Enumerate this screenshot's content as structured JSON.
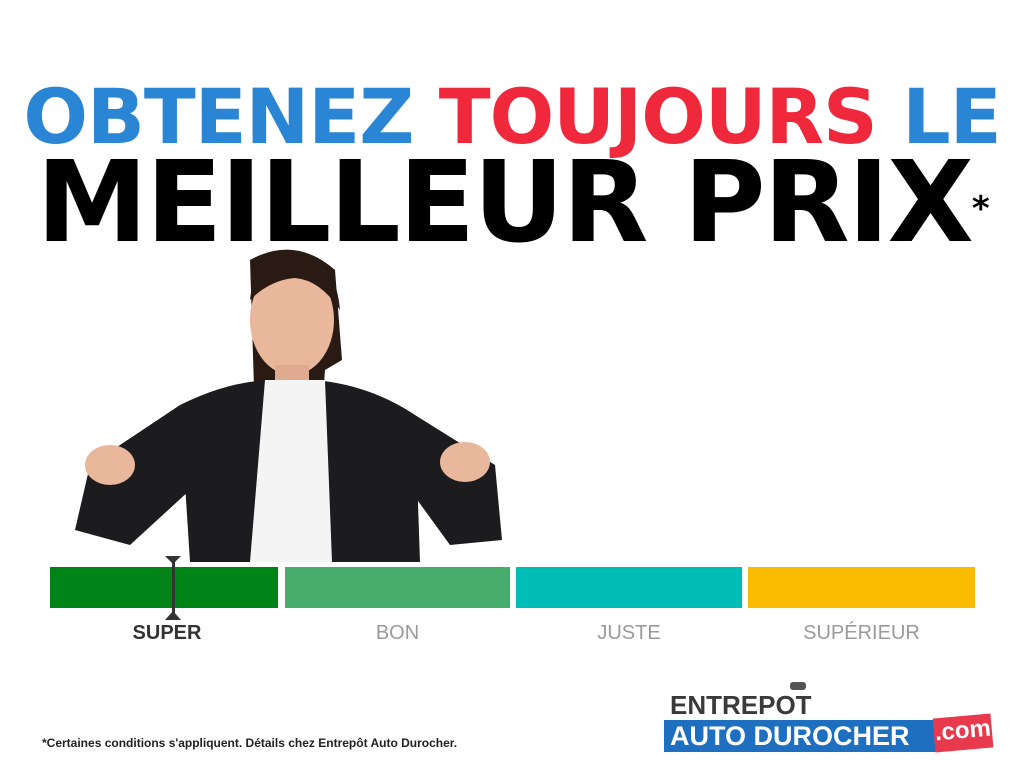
{
  "headline": {
    "word1": "OBTENEZ",
    "word2": "TOUJOURS",
    "word3": "LE",
    "line2": "MEILLEUR PRIX",
    "asterisk": "*"
  },
  "colors": {
    "blue": "#2a86d4",
    "red": "#f0283c",
    "super": "#008418",
    "bon": "#47ad6d",
    "juste": "#00bdb5",
    "superieur": "#fbbb00"
  },
  "scale": {
    "labels": [
      "SUPER",
      "BON",
      "JUSTE",
      "SUPÉRIEUR"
    ],
    "selected": "SUPER"
  },
  "disclaimer": "*Certaines conditions s'appliquent. Détails chez Entrepôt Auto Durocher.",
  "logo": {
    "line1": "ENTREPOT",
    "line2": "AUTO DUROCHER",
    "suffix": ".com"
  }
}
